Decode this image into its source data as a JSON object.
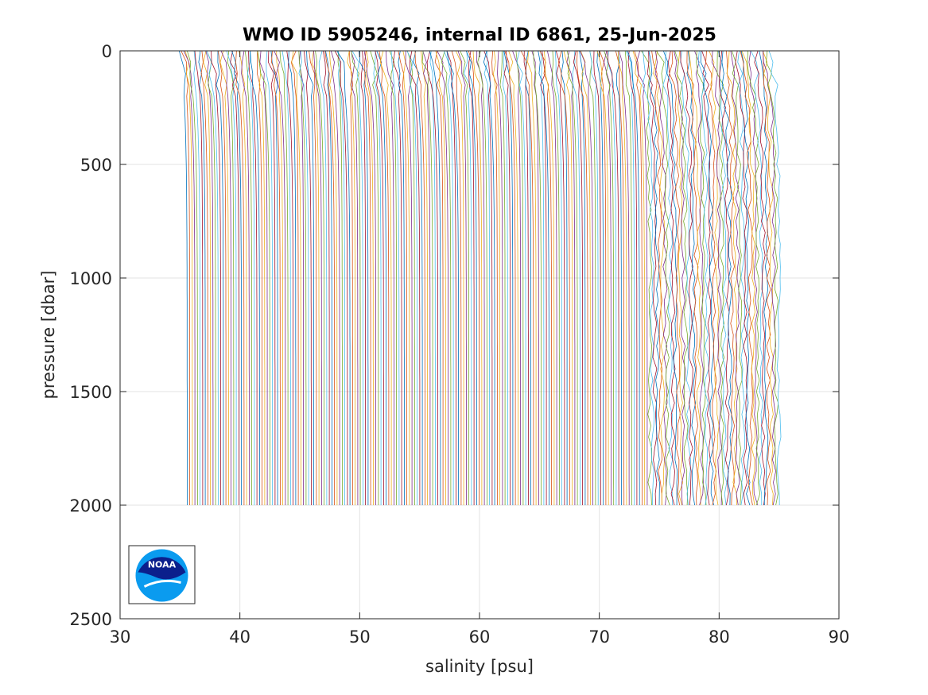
{
  "chart_data": {
    "type": "line",
    "title": "WMO ID 5905246, internal ID 6861, 25-Jun-2025",
    "xlabel": "salinity [psu]",
    "ylabel": "pressure [dbar]",
    "xlim": [
      30,
      90
    ],
    "ylim": [
      0,
      2500
    ],
    "y_reversed": true,
    "grid": true,
    "xticks": [
      30,
      40,
      50,
      60,
      70,
      80,
      90
    ],
    "yticks": [
      0,
      500,
      1000,
      1500,
      2000,
      2500
    ],
    "xtick_labels": [
      "30",
      "40",
      "50",
      "60",
      "70",
      "80",
      "90"
    ],
    "ytick_labels": [
      "0",
      "500",
      "1000",
      "1500",
      "2000",
      "2500"
    ],
    "profile_count": 230,
    "profile_offset_per_cycle_psu": 0.22,
    "first_profile_deep_salinity": 35.6,
    "last_profile_deep_salinity": 85.0,
    "max_pressure": 2000,
    "series_colors": [
      "#0072BD",
      "#D95319",
      "#EDB120",
      "#7E2F8E",
      "#77AC30",
      "#4DBEEE",
      "#A2142F"
    ]
  },
  "logo": {
    "name": "NOAA",
    "text": "NOAA",
    "colors": {
      "dark": "#0b1f8c",
      "light": "#0a9bef"
    }
  }
}
